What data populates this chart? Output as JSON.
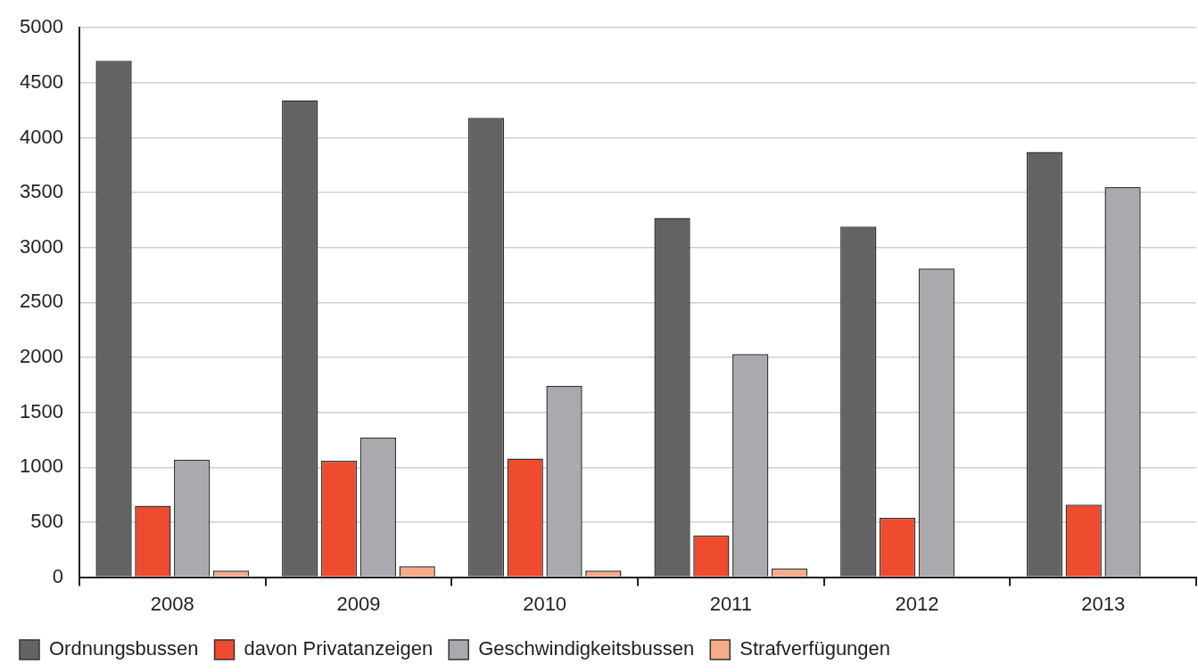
{
  "chart_data": {
    "type": "bar",
    "categories": [
      "2008",
      "2009",
      "2010",
      "2011",
      "2012",
      "2013"
    ],
    "series": [
      {
        "name": "Ordnungsbussen",
        "color": "#636365",
        "values": [
          4700,
          4340,
          4180,
          3270,
          3190,
          3870
        ]
      },
      {
        "name": "davon Privatanzeigen",
        "color": "#ee4b2f",
        "values": [
          650,
          1060,
          1080,
          380,
          540,
          660
        ]
      },
      {
        "name": "Geschwindigkeitsbussen",
        "color": "#a9aaad",
        "values": [
          1070,
          1270,
          1740,
          2030,
          2810,
          3550
        ]
      },
      {
        "name": "Strafverfügungen",
        "color": "#f6ab8b",
        "values": [
          60,
          100,
          60,
          80,
          null,
          null
        ]
      }
    ],
    "ylim": [
      0,
      5000
    ],
    "yticks": [
      0,
      500,
      1000,
      1500,
      2000,
      2500,
      3000,
      3500,
      4000,
      4500,
      5000
    ],
    "grid": "y",
    "legend": "bottom"
  }
}
